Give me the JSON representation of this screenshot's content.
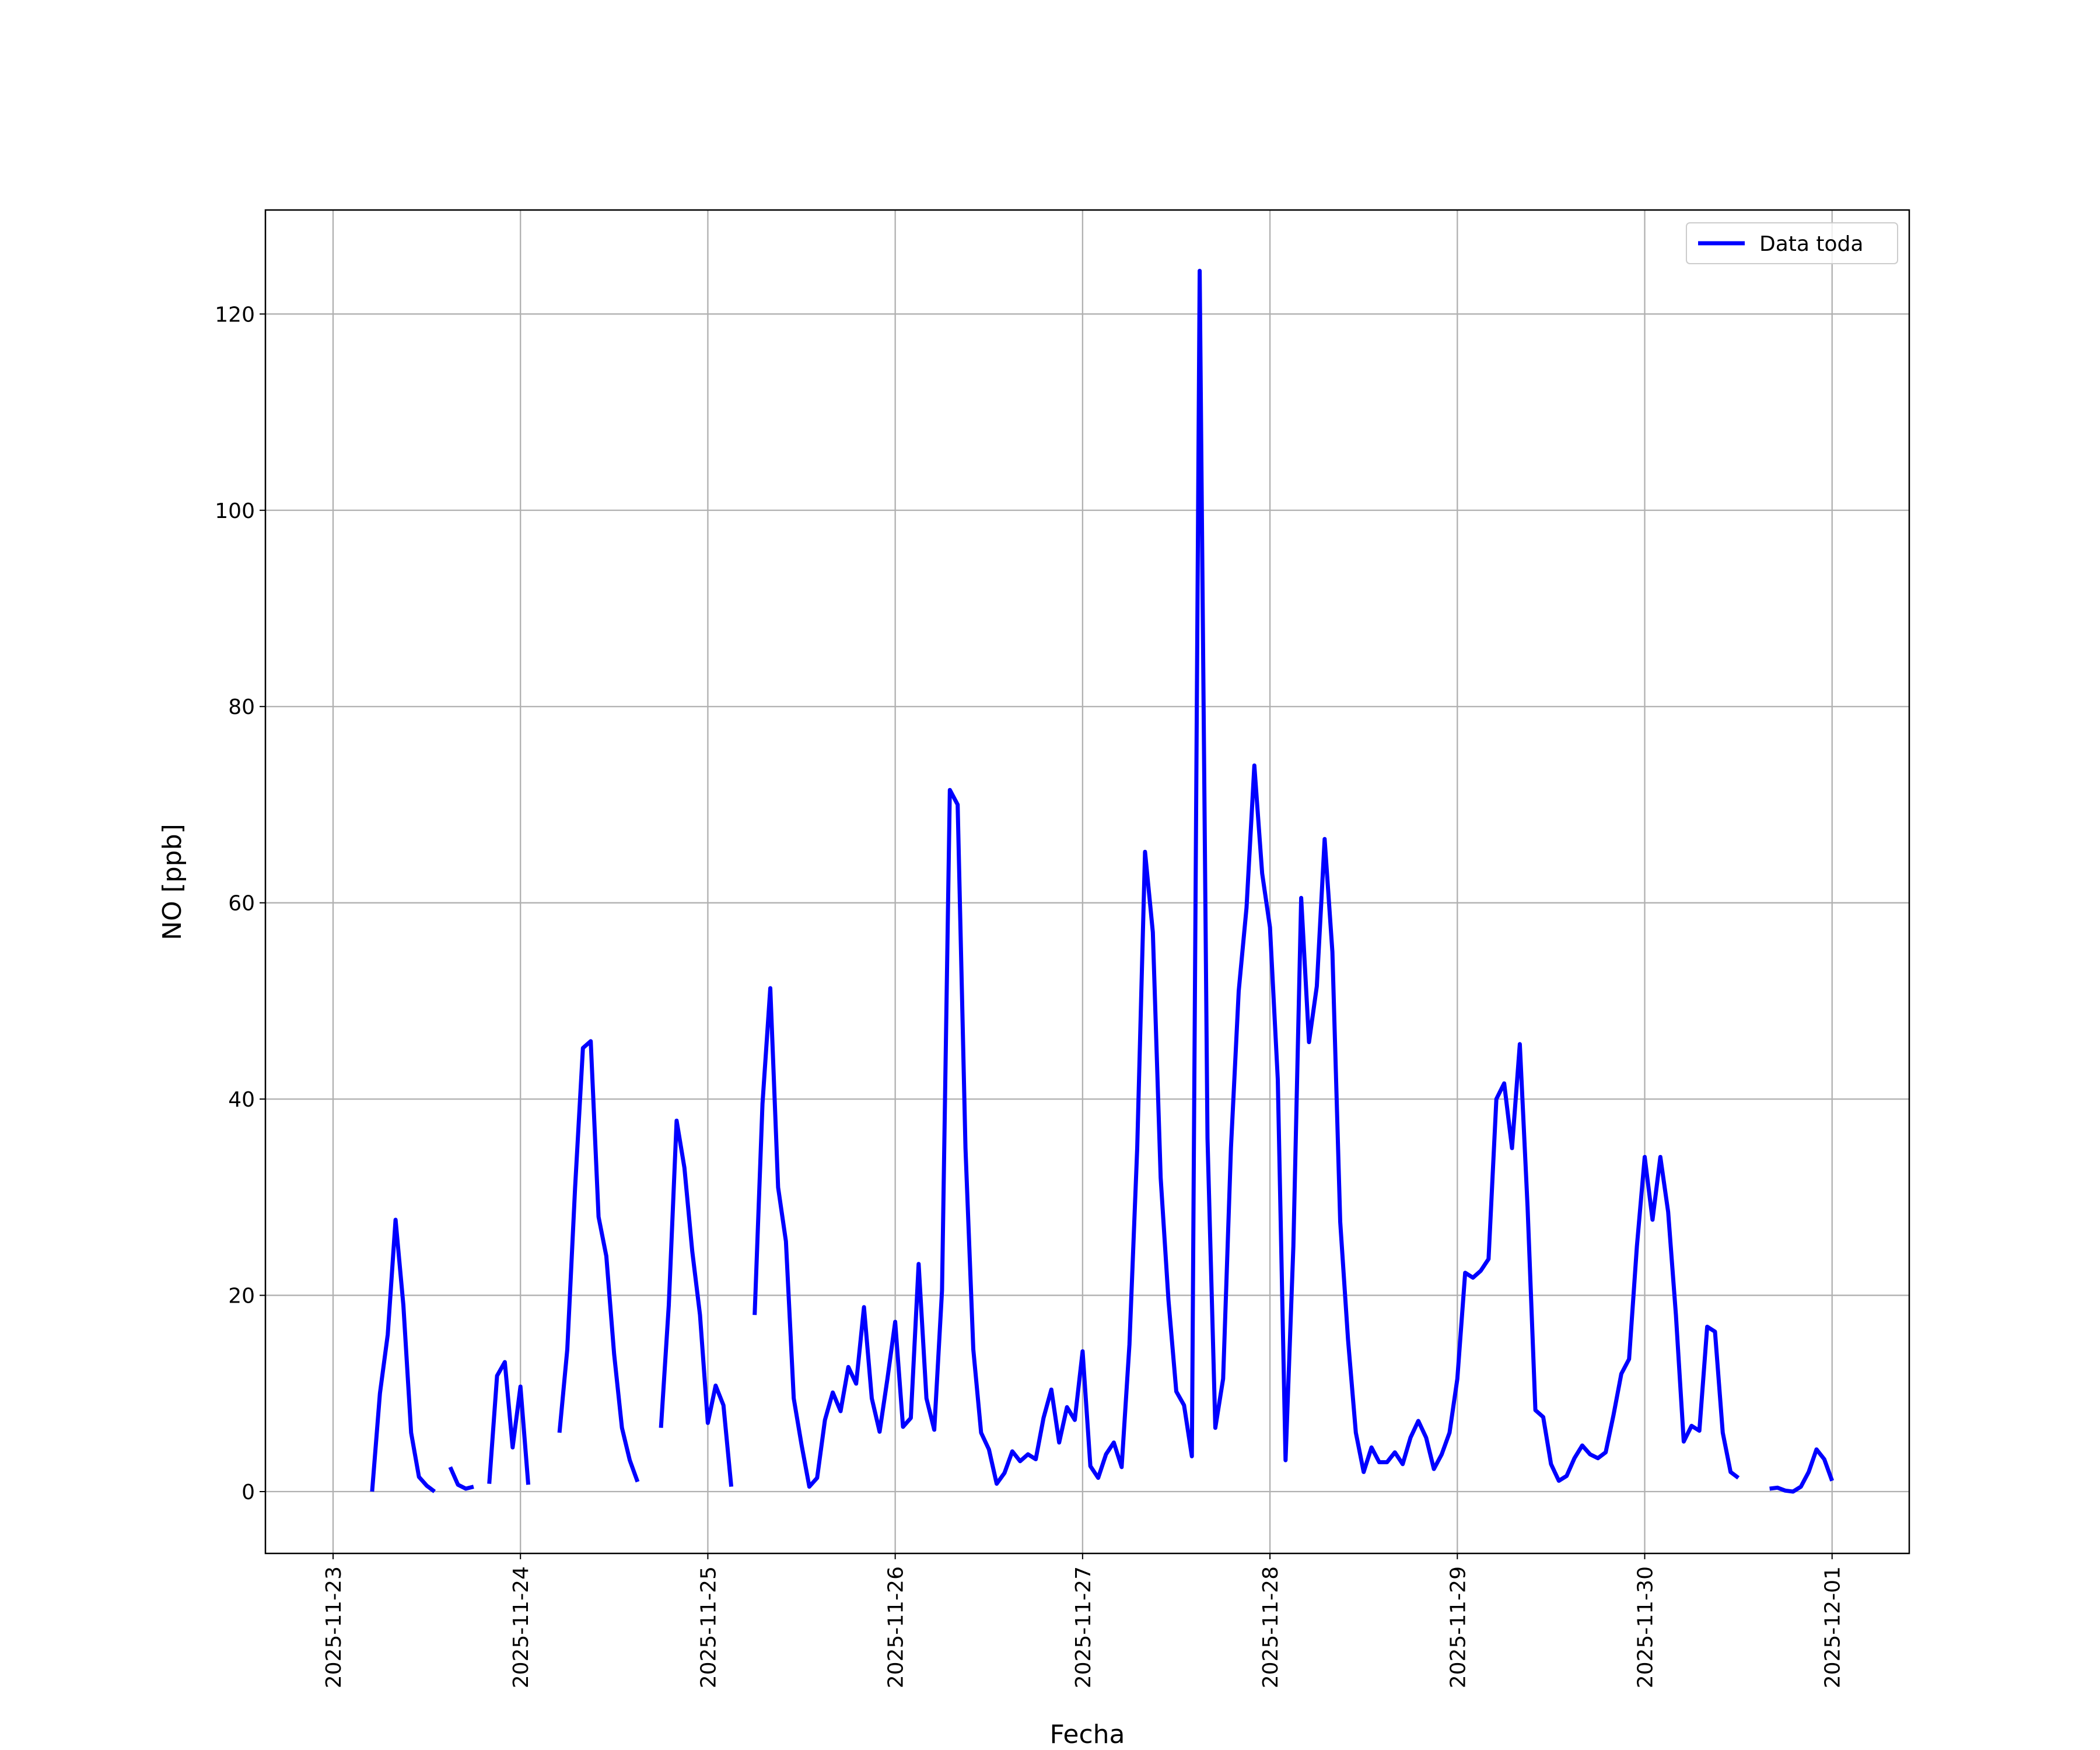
{
  "chart_data": {
    "type": "line",
    "x_label": "Fecha",
    "y_label": "NO [ppb]",
    "x": [
      "2025-11-23 05:00",
      "2025-11-23 06:00",
      "2025-11-23 07:00",
      "2025-11-23 08:00",
      "2025-11-23 09:00",
      "2025-11-23 10:00",
      "2025-11-23 11:00",
      "2025-11-23 12:00",
      "2025-11-23 13:00",
      "2025-11-23 14:00",
      "2025-11-23 15:00",
      "2025-11-23 16:00",
      "2025-11-23 17:00",
      "2025-11-23 18:00",
      "2025-11-23 19:00",
      "2025-11-23 20:00",
      "2025-11-23 21:00",
      "2025-11-23 22:00",
      "2025-11-23 23:00",
      "2025-11-24 00:00",
      "2025-11-24 01:00",
      "2025-11-24 02:00",
      "2025-11-24 03:00",
      "2025-11-24 04:00",
      "2025-11-24 05:00",
      "2025-11-24 06:00",
      "2025-11-24 07:00",
      "2025-11-24 08:00",
      "2025-11-24 09:00",
      "2025-11-24 10:00",
      "2025-11-24 11:00",
      "2025-11-24 12:00",
      "2025-11-24 13:00",
      "2025-11-24 14:00",
      "2025-11-24 15:00",
      "2025-11-24 16:00",
      "2025-11-24 17:00",
      "2025-11-24 18:00",
      "2025-11-24 19:00",
      "2025-11-24 20:00",
      "2025-11-24 21:00",
      "2025-11-24 22:00",
      "2025-11-24 23:00",
      "2025-11-25 00:00",
      "2025-11-25 01:00",
      "2025-11-25 02:00",
      "2025-11-25 03:00",
      "2025-11-25 04:00",
      "2025-11-25 05:00",
      "2025-11-25 06:00",
      "2025-11-25 07:00",
      "2025-11-25 08:00",
      "2025-11-25 09:00",
      "2025-11-25 10:00",
      "2025-11-25 11:00",
      "2025-11-25 12:00",
      "2025-11-25 13:00",
      "2025-11-25 14:00",
      "2025-11-25 15:00",
      "2025-11-25 16:00",
      "2025-11-25 17:00",
      "2025-11-25 18:00",
      "2025-11-25 19:00",
      "2025-11-25 20:00",
      "2025-11-25 21:00",
      "2025-11-25 22:00",
      "2025-11-25 23:00",
      "2025-11-26 00:00",
      "2025-11-26 01:00",
      "2025-11-26 02:00",
      "2025-11-26 03:00",
      "2025-11-26 04:00",
      "2025-11-26 05:00",
      "2025-11-26 06:00",
      "2025-11-26 07:00",
      "2025-11-26 08:00",
      "2025-11-26 09:00",
      "2025-11-26 10:00",
      "2025-11-26 11:00",
      "2025-11-26 12:00",
      "2025-11-26 13:00",
      "2025-11-26 14:00",
      "2025-11-26 15:00",
      "2025-11-26 16:00",
      "2025-11-26 17:00",
      "2025-11-26 18:00",
      "2025-11-26 19:00",
      "2025-11-26 20:00",
      "2025-11-26 21:00",
      "2025-11-26 22:00",
      "2025-11-26 23:00",
      "2025-11-27 00:00",
      "2025-11-27 01:00",
      "2025-11-27 02:00",
      "2025-11-27 03:00",
      "2025-11-27 04:00",
      "2025-11-27 05:00",
      "2025-11-27 06:00",
      "2025-11-27 07:00",
      "2025-11-27 08:00",
      "2025-11-27 09:00",
      "2025-11-27 10:00",
      "2025-11-27 11:00",
      "2025-11-27 12:00",
      "2025-11-27 13:00",
      "2025-11-27 14:00",
      "2025-11-27 15:00",
      "2025-11-27 16:00",
      "2025-11-27 17:00",
      "2025-11-27 18:00",
      "2025-11-27 19:00",
      "2025-11-27 20:00",
      "2025-11-27 21:00",
      "2025-11-27 22:00",
      "2025-11-27 23:00",
      "2025-11-28 00:00",
      "2025-11-28 01:00",
      "2025-11-28 02:00",
      "2025-11-28 03:00",
      "2025-11-28 04:00",
      "2025-11-28 05:00",
      "2025-11-28 06:00",
      "2025-11-28 07:00",
      "2025-11-28 08:00",
      "2025-11-28 09:00",
      "2025-11-28 10:00",
      "2025-11-28 11:00",
      "2025-11-28 12:00",
      "2025-11-28 13:00",
      "2025-11-28 14:00",
      "2025-11-28 15:00",
      "2025-11-28 16:00",
      "2025-11-28 17:00",
      "2025-11-28 18:00",
      "2025-11-28 19:00",
      "2025-11-28 20:00",
      "2025-11-28 21:00",
      "2025-11-28 22:00",
      "2025-11-28 23:00",
      "2025-11-29 00:00",
      "2025-11-29 01:00",
      "2025-11-29 02:00",
      "2025-11-29 03:00",
      "2025-11-29 04:00",
      "2025-11-29 05:00",
      "2025-11-29 06:00",
      "2025-11-29 07:00",
      "2025-11-29 08:00",
      "2025-11-29 09:00",
      "2025-11-29 10:00",
      "2025-11-29 11:00",
      "2025-11-29 12:00",
      "2025-11-29 13:00",
      "2025-11-29 14:00",
      "2025-11-29 15:00",
      "2025-11-29 16:00",
      "2025-11-29 17:00",
      "2025-11-29 18:00",
      "2025-11-29 19:00",
      "2025-11-29 20:00",
      "2025-11-29 21:00",
      "2025-11-29 22:00",
      "2025-11-29 23:00",
      "2025-11-30 00:00",
      "2025-11-30 01:00",
      "2025-11-30 02:00",
      "2025-11-30 03:00",
      "2025-11-30 04:00",
      "2025-11-30 05:00",
      "2025-11-30 06:00",
      "2025-11-30 07:00",
      "2025-11-30 08:00",
      "2025-11-30 09:00",
      "2025-11-30 10:00",
      "2025-11-30 11:00",
      "2025-11-30 12:00",
      "2025-11-30 13:00",
      "2025-11-30 14:00",
      "2025-11-30 15:00",
      "2025-11-30 16:00",
      "2025-11-30 17:00",
      "2025-11-30 18:00",
      "2025-11-30 19:00",
      "2025-11-30 20:00",
      "2025-11-30 21:00",
      "2025-11-30 22:00",
      "2025-11-30 23:00",
      "2025-12-01 00:00"
    ],
    "series": [
      {
        "name": "Data toda",
        "color": "#0000ff",
        "values": [
          0,
          10,
          16,
          27.7,
          19,
          6,
          1.5,
          0.6,
          0,
          null,
          2.5,
          0.7,
          0.3,
          0.5,
          null,
          0.8,
          11.8,
          13.2,
          4.5,
          10.7,
          0.7,
          null,
          null,
          null,
          6,
          14.5,
          31,
          45.2,
          45.9,
          28,
          24,
          14,
          6.5,
          3.2,
          1,
          null,
          null,
          6.5,
          19,
          37.8,
          33,
          24.5,
          18,
          7,
          10.8,
          8.8,
          0.5,
          null,
          null,
          18,
          39.5,
          51.3,
          31,
          25.5,
          9.5,
          4.8,
          0.5,
          1.4,
          7.3,
          10.1,
          8.2,
          12.7,
          11,
          18.8,
          9.5,
          6.1,
          11.5,
          17.3,
          6.6,
          7.5,
          23.2,
          9.5,
          6.3,
          20.5,
          71.5,
          70,
          35,
          14.5,
          6,
          4.3,
          0.8,
          1.9,
          4.1,
          3.1,
          3.8,
          3.3,
          7.5,
          10.4,
          5,
          8.6,
          7.3,
          14.3,
          2.6,
          1.4,
          3.8,
          5,
          2.5,
          15,
          35,
          65.2,
          57,
          32,
          19.5,
          10.2,
          8.8,
          3.6,
          124.4,
          36,
          6.5,
          11.5,
          35,
          51,
          59.5,
          74,
          63,
          57.5,
          42,
          3.2,
          25,
          60.5,
          45.8,
          51.5,
          66.5,
          55,
          27.5,
          15.5,
          6,
          2,
          4.5,
          3,
          3,
          4,
          2.8,
          5.5,
          7.2,
          5.5,
          2.3,
          3.8,
          6,
          11.5,
          22.3,
          21.8,
          22.5,
          23.7,
          40,
          41.6,
          35,
          45.6,
          29,
          8.3,
          7.6,
          2.8,
          1.1,
          1.6,
          3.4,
          4.7,
          3.8,
          3.4,
          4,
          7.8,
          12,
          13.5,
          25,
          34.1,
          27.7,
          34.1,
          28.5,
          18,
          5.1,
          6.7,
          6.2,
          16.8,
          16.3,
          6,
          2,
          1.4,
          null,
          null,
          null,
          0.3,
          0.4,
          0.1,
          0,
          0.5,
          2,
          4.3,
          3.3,
          1.1
        ]
      }
    ],
    "xlim": [
      "2025-11-22 15:20",
      "2025-12-01 09:53"
    ],
    "xticks": [
      "2025-11-23",
      "2025-11-24",
      "2025-11-25",
      "2025-11-26",
      "2025-11-27",
      "2025-11-28",
      "2025-11-29",
      "2025-11-30",
      "2025-12-01"
    ],
    "ylim": [
      -6.3,
      130.6
    ],
    "yticks": [
      0,
      20,
      40,
      60,
      80,
      100,
      120
    ],
    "grid": true,
    "legend": "upper right"
  }
}
